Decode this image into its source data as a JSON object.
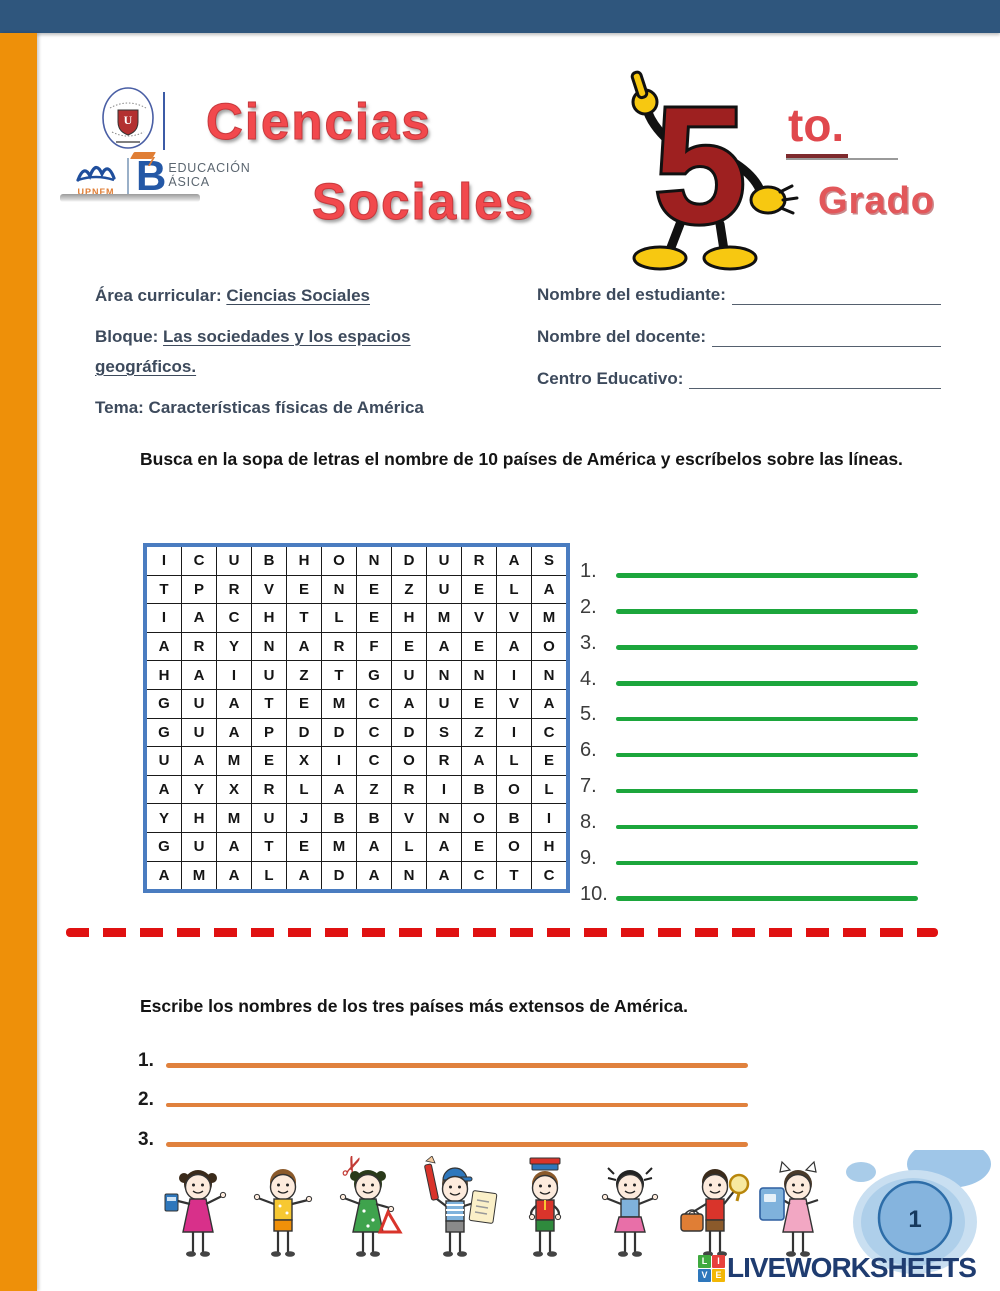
{
  "header": {
    "title_line1": "Ciencias",
    "title_line2": "Sociales",
    "grade": {
      "number": "5",
      "suffix": "to.",
      "word": "Grado"
    },
    "logos": {
      "upnfm_acronym": "UPNFM",
      "program_b": "B",
      "program_top": "EDUCACIÓN",
      "program_bottom": "ÁSICA"
    }
  },
  "info": {
    "left": [
      {
        "label": "Área curricular:",
        "value": "Ciencias Sociales"
      },
      {
        "label": "Bloque:",
        "value": "Las sociedades y los espacios geográficos."
      },
      {
        "label": "Tema:",
        "value": "Características físicas de América"
      }
    ],
    "right": [
      {
        "label": "Nombre del estudiante:"
      },
      {
        "label": "Nombre del docente:"
      },
      {
        "label": "Centro Educativo:"
      }
    ]
  },
  "activity1": {
    "instruction": "Busca en la sopa de letras el nombre de 10 países de América y escríbelos sobre las líneas.",
    "grid": [
      [
        "I",
        "C",
        "U",
        "B",
        "H",
        "O",
        "N",
        "D",
        "U",
        "R",
        "A",
        "S"
      ],
      [
        "T",
        "P",
        "R",
        "V",
        "E",
        "N",
        "E",
        "Z",
        "U",
        "E",
        "L",
        "A"
      ],
      [
        "I",
        "A",
        "C",
        "H",
        "T",
        "L",
        "E",
        "H",
        "M",
        "V",
        "V",
        "M"
      ],
      [
        "A",
        "R",
        "Y",
        "N",
        "A",
        "R",
        "F",
        "E",
        "A",
        "E",
        "A",
        "O"
      ],
      [
        "H",
        "A",
        "I",
        "U",
        "Z",
        "T",
        "G",
        "U",
        "N",
        "N",
        "I",
        "N"
      ],
      [
        "G",
        "U",
        "A",
        "T",
        "E",
        "M",
        "C",
        "A",
        "U",
        "E",
        "V",
        "A"
      ],
      [
        "G",
        "U",
        "A",
        "P",
        "D",
        "D",
        "C",
        "D",
        "S",
        "Z",
        "I",
        "C"
      ],
      [
        "U",
        "A",
        "M",
        "E",
        "X",
        "I",
        "C",
        "O",
        "R",
        "A",
        "L",
        "E"
      ],
      [
        "A",
        "Y",
        "X",
        "R",
        "L",
        "A",
        "Z",
        "R",
        "I",
        "B",
        "O",
        "L"
      ],
      [
        "Y",
        "H",
        "M",
        "U",
        "J",
        "B",
        "B",
        "V",
        "N",
        "O",
        "B",
        "I"
      ],
      [
        "G",
        "U",
        "A",
        "T",
        "E",
        "M",
        "A",
        "L",
        "A",
        "E",
        "O",
        "H"
      ],
      [
        "A",
        "M",
        "A",
        "L",
        "A",
        "D",
        "A",
        "N",
        "A",
        "C",
        "T",
        "C"
      ]
    ],
    "answer_numbers": [
      "1.",
      "2.",
      "3.",
      "4.",
      "5.",
      "6.",
      "7.",
      "8.",
      "9.",
      "10."
    ]
  },
  "activity2": {
    "instruction": "Escribe los nombres de los tres países más extensos de América.",
    "answer_numbers": [
      "1.",
      "2.",
      "3."
    ]
  },
  "footer": {
    "page_number": "1",
    "brand": {
      "squares": [
        "L",
        "I",
        "V",
        "E"
      ],
      "text": "LIVEWORKSHEETS"
    }
  },
  "colors": {
    "top_bar": "#2F567D",
    "side_bar": "#EE9009",
    "title_red": "#F2494D",
    "grade_red": "#9E2020",
    "green_line": "#1CA63C",
    "orange_line": "#E0813D",
    "red_dash": "#E01111",
    "grid_border": "#4A7CC0",
    "brand_navy": "#1F3C70",
    "info_text": "#3D4A5C"
  }
}
